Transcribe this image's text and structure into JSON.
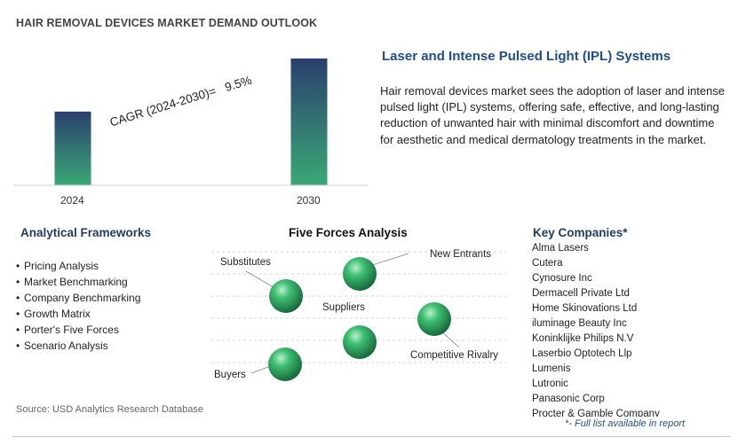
{
  "page_title": "HAIR REMOVAL DEVICES MARKET DEMAND OUTLOOK",
  "chart_data": {
    "type": "bar",
    "categories": [
      "2024",
      "2030"
    ],
    "values": [
      1.0,
      1.72
    ],
    "annotation": "CAGR (2024-2030)=   9.5%"
  },
  "ipl": {
    "title": "Laser and Intense Pulsed Light (IPL) Systems",
    "description": "Hair removal devices market sees the adoption of laser and intense pulsed light (IPL) systems, offering safe, effective, and long-lasting reduction of unwanted hair with minimal discomfort and downtime for aesthetic and medical dermatology treatments in the market."
  },
  "analytical_frameworks": {
    "title": "Analytical Frameworks",
    "items": [
      "Pricing Analysis",
      "Market Benchmarking",
      "Company Benchmarking",
      "Growth Matrix",
      "Porter's Five Forces",
      "Scenario Analysis"
    ]
  },
  "five_forces": {
    "title": "Five Forces Analysis",
    "labels": {
      "substitutes": "Substitutes",
      "new_entrants": "New Entrants",
      "suppliers": "Suppliers",
      "competitive_rivalry": "Competitive Rivalry",
      "buyers": "Buyers"
    }
  },
  "key_companies": {
    "title": "Key Companies*",
    "items": [
      "Alma Lasers",
      "Cutera",
      "Cynosure Inc",
      "Dermacell Private Ltd",
      "Home Skinovations Ltd",
      "iluminage Beauty Inc",
      "Koninklijke Philips N.V",
      "Laserbio Optotech Llp",
      "Lumenis",
      "Lutronic",
      "Panasonic Corp",
      "Procter & Gamble Company"
    ]
  },
  "source": "Source: USD Analytics Research Database",
  "footnote": "*- Full list available in report",
  "colors": {
    "bar_top": "#2b3f6e",
    "bar_bottom": "#3aa876",
    "title_blue": "#1f4e89",
    "sphere": "#2e9e5e"
  }
}
